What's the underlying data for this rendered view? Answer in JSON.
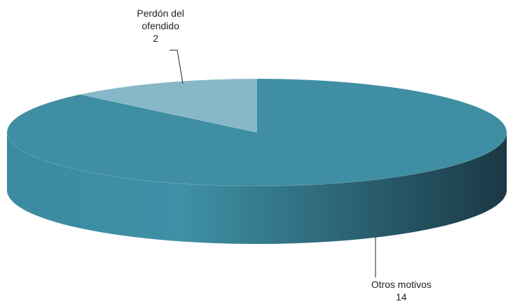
{
  "chart_data": {
    "type": "pie",
    "categories": [
      "Perdón del ofendido",
      "Otros motivos"
    ],
    "values": [
      2,
      14
    ],
    "colors": [
      "#86b8c8",
      "#3f8ea3"
    ]
  }
}
